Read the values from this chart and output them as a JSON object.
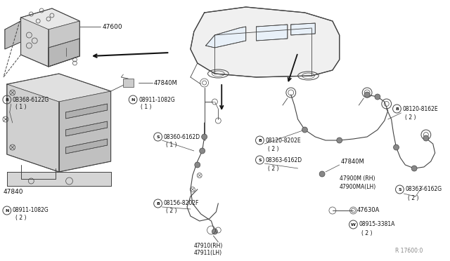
{
  "bg_color": "#ffffff",
  "line_color": "#444444",
  "text_color": "#111111",
  "diagram_ref": "R 17600:0",
  "fig_w": 6.4,
  "fig_h": 3.72,
  "dpi": 100,
  "xlim": [
    0,
    640
  ],
  "ylim": [
    0,
    372
  ]
}
